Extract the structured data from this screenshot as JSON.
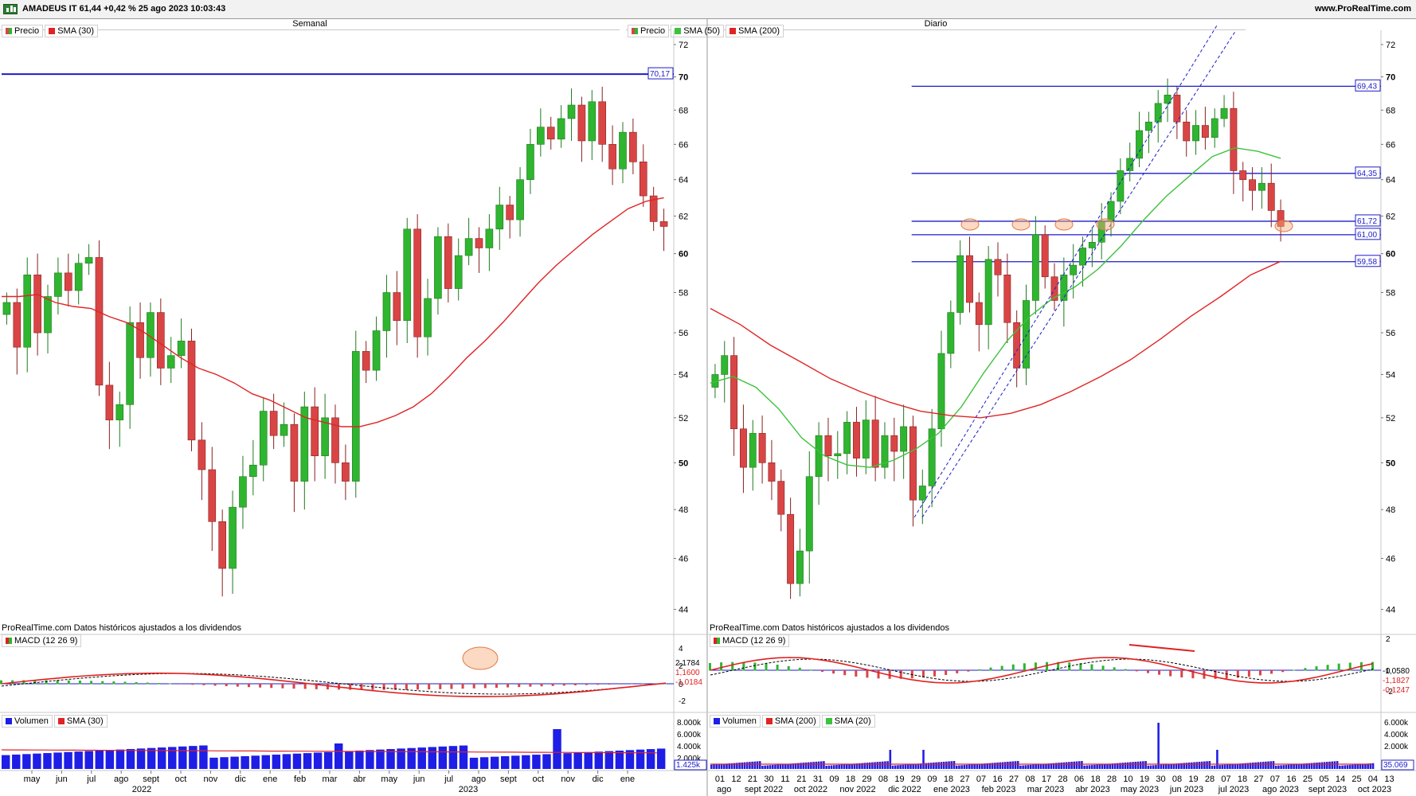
{
  "header": {
    "title": "AMADEUS IT 61,44 +0,42 % 25 ago 2023 10:03:43",
    "site": "www.ProRealTime.com"
  },
  "colors": {
    "up": "#2fb52f",
    "down": "#d94545",
    "sma_red": "#e02424",
    "sma_green": "#3cc23c",
    "hline": "#1c1cc8",
    "volume": "#1e1ee6",
    "macd_line": "#e02020",
    "macd_signal": "#000000"
  },
  "left": {
    "title": "Semanal",
    "legend": [
      {
        "label": "Precio",
        "icon": "candle-icon"
      },
      {
        "label": "SMA (30)",
        "color": "#e02424"
      }
    ],
    "footer": "ProRealTime.com Datos históricos ajustados a los dividendos",
    "macd_legend": "MACD (12 26 9)",
    "volume_legend": [
      {
        "label": "Volumen",
        "color": "#1e1ee6"
      },
      {
        "label": "SMA (30)",
        "color": "#e02424"
      }
    ],
    "time_labels": [
      "may",
      "jun",
      "jul",
      "ago",
      "sept",
      "oct",
      "nov",
      "dic",
      "ene",
      "feb",
      "mar",
      "abr",
      "may",
      "jun",
      "jul",
      "ago",
      "sept",
      "oct",
      "nov",
      "dic",
      "ene"
    ],
    "years": [
      "2022",
      "2023"
    ]
  },
  "right": {
    "title": "Diario",
    "legend": [
      {
        "label": "Precio",
        "icon": "candle-icon"
      },
      {
        "label": "SMA (50)",
        "color": "#3cc23c"
      },
      {
        "label": "SMA (200)",
        "color": "#e02424"
      }
    ],
    "footer": "ProRealTime.com Datos históricos ajustados a los dividendos",
    "macd_legend": "MACD (12 26 9)",
    "volume_legend": [
      {
        "label": "Volumen",
        "color": "#1e1ee6"
      },
      {
        "label": "SMA (200)",
        "color": "#e02424"
      },
      {
        "label": "SMA (20)",
        "color": "#3cc23c"
      }
    ],
    "day_labels": [
      "01",
      "12",
      "21",
      "30",
      "11",
      "21",
      "31",
      "09",
      "18",
      "29",
      "08",
      "19",
      "29",
      "09",
      "18",
      "27",
      "07",
      "16",
      "27",
      "08",
      "17",
      "28",
      "06",
      "18",
      "28",
      "10",
      "19",
      "30",
      "08",
      "19",
      "28",
      "07",
      "18",
      "27",
      "07",
      "16",
      "25",
      "05",
      "14",
      "25",
      "04",
      "13"
    ],
    "month_labels": [
      "ago",
      "sept 2022",
      "oct 2022",
      "nov 2022",
      "dic 2022",
      "ene 2023",
      "feb 2023",
      "mar 2023",
      "abr 2023",
      "may 2023",
      "jun 2023",
      "jul 2023",
      "ago 2023",
      "sept 2023",
      "oct 2023"
    ]
  },
  "chart_data": [
    {
      "type": "line",
      "title": "Semanal",
      "series": [
        {
          "name": "Precio",
          "kind": "candlestick",
          "values": [
            57.5,
            55.3,
            58.9,
            56.0,
            57.8,
            59.0,
            58.1,
            59.5,
            59.8,
            53.5,
            51.9,
            52.6,
            56.5,
            54.8,
            57.0,
            54.3,
            54.9,
            55.6,
            51.0,
            49.7,
            47.5,
            45.6,
            48.1,
            49.4,
            49.9,
            52.3,
            51.2,
            51.7,
            49.2,
            52.5,
            50.3,
            52.0,
            50.0,
            49.2,
            55.1,
            54.2,
            56.1,
            58.0,
            56.6,
            61.3,
            55.8,
            57.7,
            60.9,
            58.2,
            59.9,
            60.8,
            60.3,
            61.3,
            62.6,
            61.8,
            64.0,
            66.0,
            67.0,
            66.3,
            67.5,
            68.3,
            66.2,
            68.5,
            66.0,
            64.6,
            66.7,
            65.0,
            63.1,
            61.7,
            61.44
          ]
        },
        {
          "name": "SMA (30)",
          "values": [
            57.8,
            57.8,
            57.9,
            57.5,
            57.3,
            57.2,
            56.8,
            56.5,
            56.0,
            55.4,
            54.8,
            54.3,
            54.0,
            53.6,
            53.1,
            52.8,
            52.4,
            52.0,
            51.8,
            51.6,
            51.6,
            51.8,
            52.1,
            52.5,
            53.1,
            53.9,
            54.8,
            55.6,
            56.5,
            57.5,
            58.5,
            59.4,
            60.2,
            61.0,
            61.7,
            62.4,
            62.8,
            63.0
          ]
        }
      ],
      "ylabel": "",
      "ylim": [
        43.5,
        72.5
      ],
      "yticks": [
        44,
        46,
        48,
        50,
        52,
        54,
        56,
        58,
        60,
        62,
        64,
        66,
        68,
        70,
        72
      ],
      "levels": [
        {
          "label": "70,17",
          "value": 70.17
        }
      ],
      "macd": {
        "line": 1.16,
        "signal": 2.1784,
        "histogram": -1.0184,
        "yticks": [
          "4",
          "2",
          "0",
          "-2"
        ]
      },
      "volume": {
        "yticks": [
          "8.000k",
          "6.000k",
          "4.000k",
          "2.000k"
        ],
        "last": "1.425k"
      }
    },
    {
      "type": "line",
      "title": "Diario",
      "series": [
        {
          "name": "Precio",
          "kind": "candlestick",
          "values": [
            54.0,
            54.9,
            51.5,
            49.8,
            51.3,
            50.0,
            49.2,
            47.8,
            45.0,
            46.3,
            49.4,
            51.2,
            50.3,
            50.4,
            51.8,
            50.2,
            51.9,
            49.8,
            51.2,
            50.5,
            51.6,
            48.4,
            49.0,
            51.5,
            55.0,
            57.0,
            59.9,
            57.5,
            56.4,
            59.7,
            58.9,
            56.5,
            54.3,
            57.6,
            61.0,
            58.8,
            57.6,
            58.9,
            59.4,
            60.3,
            60.6,
            61.7,
            62.8,
            64.5,
            65.2,
            66.8,
            67.3,
            68.4,
            68.9,
            67.3,
            66.2,
            67.1,
            66.4,
            67.5,
            68.1,
            64.5,
            64.0,
            63.4,
            63.8,
            62.3,
            61.44
          ]
        },
        {
          "name": "SMA (50)",
          "values": [
            53.6,
            53.9,
            53.4,
            52.4,
            51.1,
            50.3,
            49.9,
            49.8,
            50.1,
            50.6,
            51.3,
            52.5,
            54.1,
            55.6,
            56.8,
            57.7,
            58.3,
            59.2,
            60.4,
            61.8,
            63.1,
            64.2,
            65.3,
            65.8,
            65.6,
            65.2
          ]
        },
        {
          "name": "SMA (200)",
          "values": [
            57.2,
            56.4,
            55.4,
            54.6,
            53.8,
            53.2,
            52.7,
            52.3,
            52.1,
            52.0,
            52.2,
            52.6,
            53.2,
            53.9,
            54.7,
            55.7,
            56.8,
            57.8,
            58.9,
            59.6
          ]
        }
      ],
      "ylabel": "",
      "ylim": [
        43.5,
        72.5
      ],
      "yticks": [
        44,
        46,
        48,
        50,
        52,
        54,
        56,
        58,
        60,
        62,
        64,
        66,
        68,
        70,
        72
      ],
      "levels": [
        {
          "label": "69,43",
          "value": 69.43
        },
        {
          "label": "64,35",
          "value": 64.35
        },
        {
          "label": "61,72",
          "value": 61.72
        },
        {
          "label": "61,00",
          "value": 61.0
        },
        {
          "label": "59,58",
          "value": 59.58
        }
      ],
      "macd": {
        "line": -1.1827,
        "signal": -1.058,
        "histogram": -0.1247,
        "yticks": [
          "2",
          "0",
          "-2"
        ]
      },
      "volume": {
        "yticks": [
          "6.000k",
          "4.000k",
          "2.000k"
        ],
        "last": "35.069"
      }
    }
  ]
}
